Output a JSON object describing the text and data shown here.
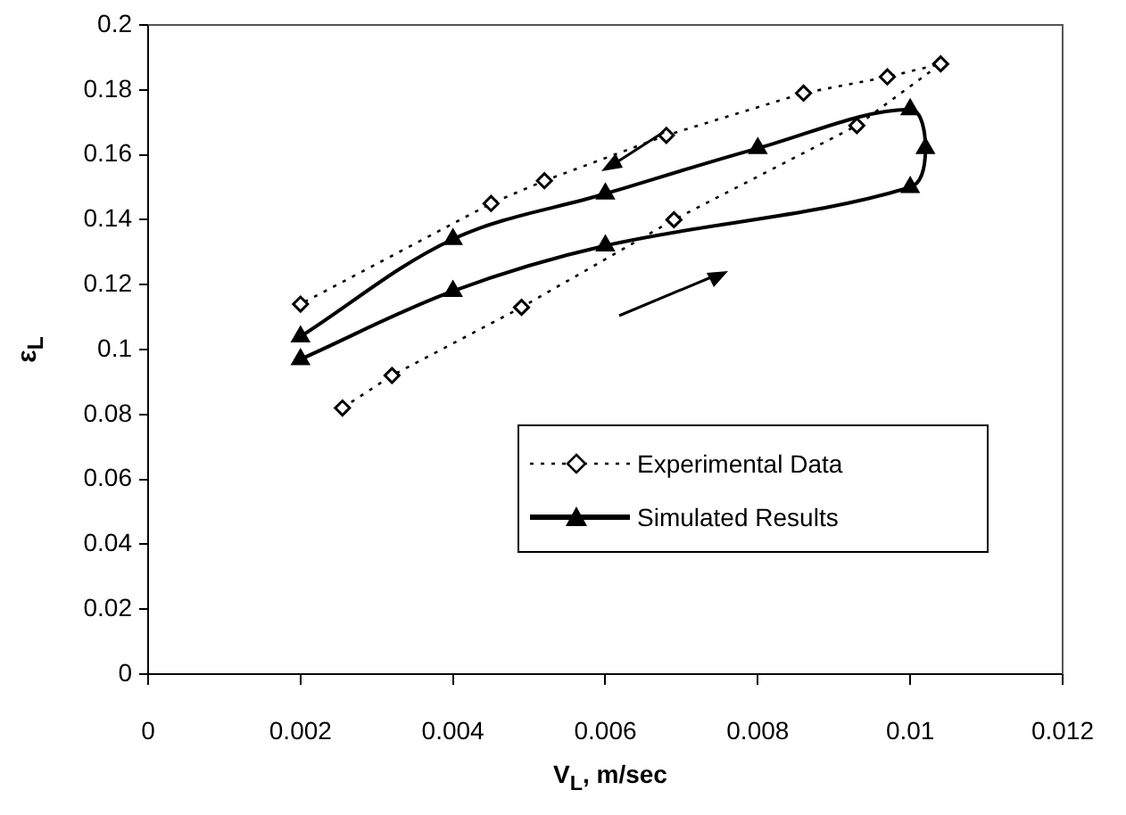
{
  "chart_data": {
    "type": "line",
    "xlabel": "V$_{L}$, m/sec",
    "ylabel": "ε$_{L}$",
    "xlim": [
      0,
      0.012
    ],
    "xticks": [
      0,
      0.002,
      0.004,
      0.006,
      0.008,
      0.01,
      0.012
    ],
    "ylim": [
      0,
      0.2
    ],
    "yticks": [
      0,
      0.02,
      0.04,
      0.06,
      0.08,
      0.1,
      0.12,
      0.14,
      0.16,
      0.18,
      0.2
    ],
    "grid": false,
    "legend": "right",
    "series": [
      {
        "name": "Experimental Data",
        "color": "#000000",
        "marker": "diamond",
        "line_style": "dotted",
        "x": [
          0.00255,
          0.0032,
          0.0049,
          0.0069,
          0.0093,
          0.0104,
          0.0097,
          0.0086,
          0.0068,
          0.0052,
          0.0045,
          0.002
        ],
        "values": [
          0.082,
          0.092,
          0.113,
          0.14,
          0.169,
          0.188,
          0.184,
          0.179,
          0.166,
          0.152,
          0.145,
          0.114
        ]
      },
      {
        "name": "Simulated Results",
        "color": "#000000",
        "marker": "triangle",
        "line_style": "solid",
        "x": [
          0.002,
          0.004,
          0.006,
          0.01,
          0.0102,
          0.01,
          0.008,
          0.006,
          0.004,
          0.002
        ],
        "values": [
          0.097,
          0.118,
          0.132,
          0.15,
          0.162,
          0.174,
          0.162,
          0.148,
          0.134,
          0.104
        ]
      }
    ]
  }
}
